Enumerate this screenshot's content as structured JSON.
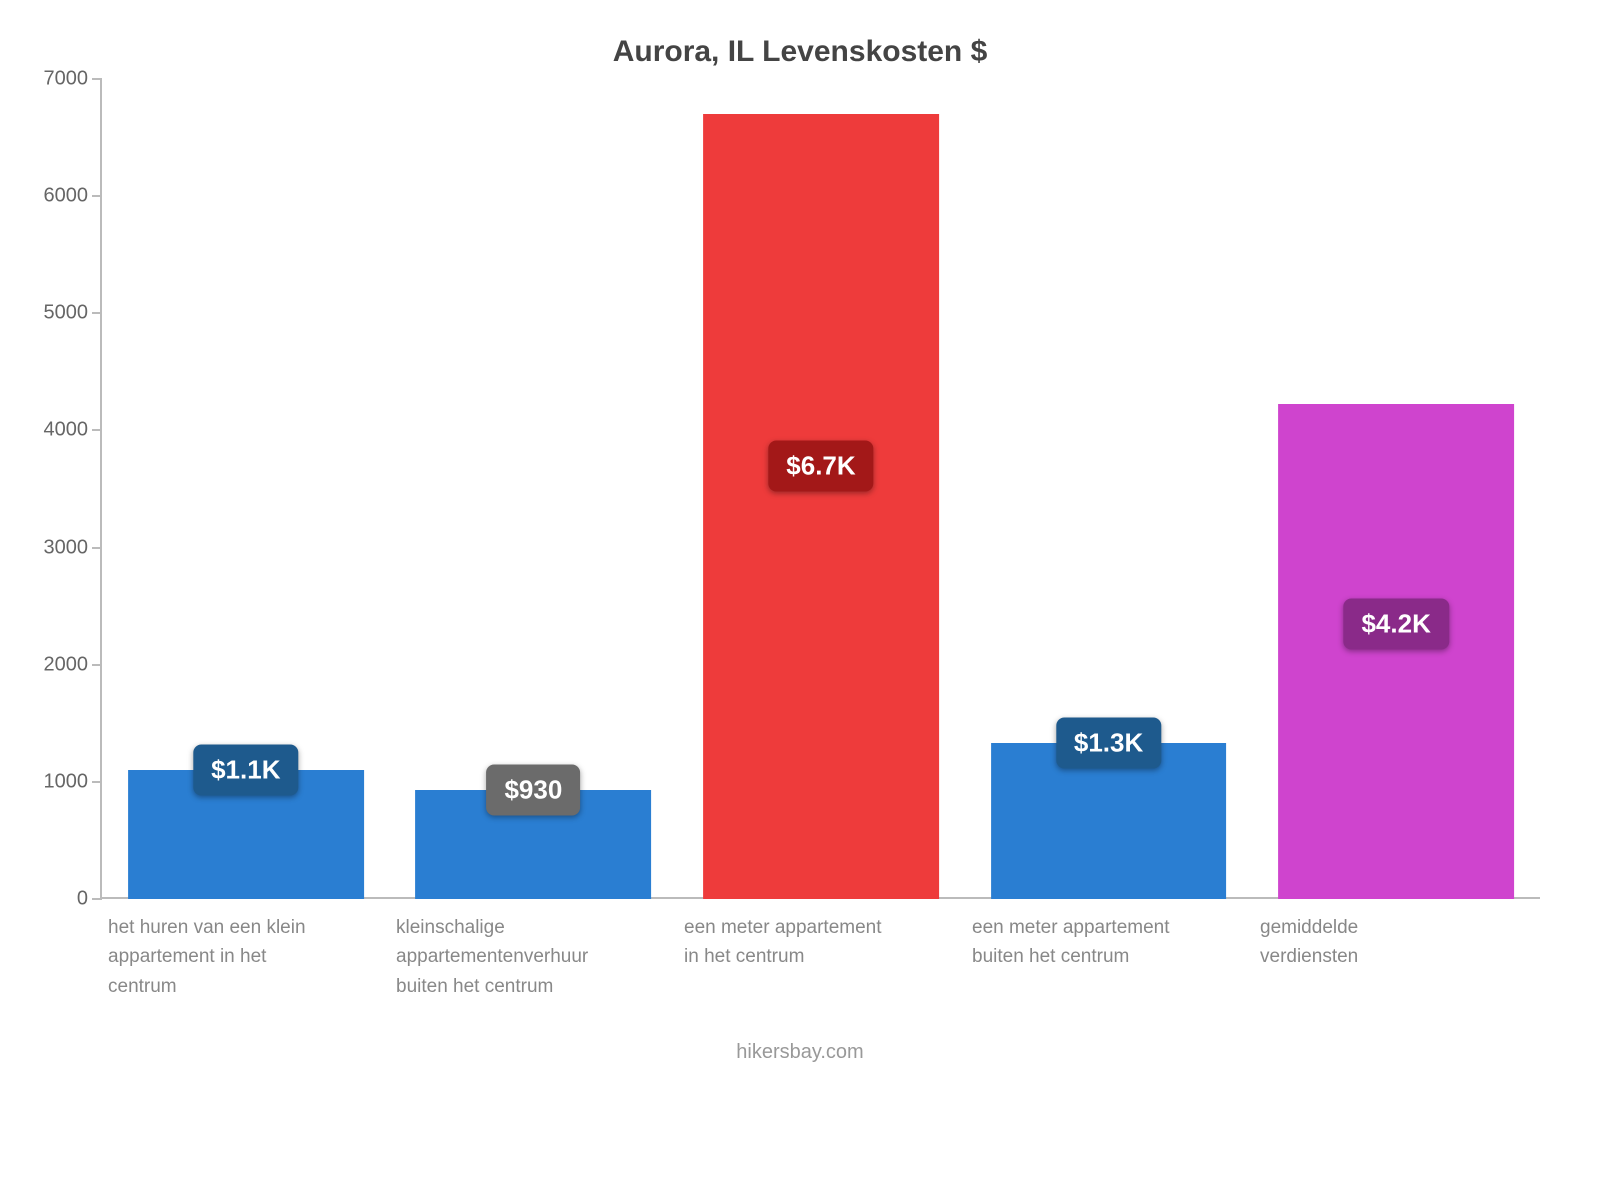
{
  "chart": {
    "type": "bar",
    "title": "Aurora, IL Levenskosten $",
    "title_fontsize": 30,
    "title_color": "#444444",
    "background_color": "#ffffff",
    "axis_color": "#bbbbbb",
    "ymin": 0,
    "ymax": 7000,
    "ytick_step": 1000,
    "yticks": [
      0,
      1000,
      2000,
      3000,
      4000,
      5000,
      6000,
      7000
    ],
    "ytick_labels": [
      "0",
      "1000",
      "2000",
      "3000",
      "4000",
      "5000",
      "6000",
      "7000"
    ],
    "ytick_fontsize": 20,
    "ytick_color": "#666666",
    "xlabel_fontsize": 19,
    "xlabel_color": "#888888",
    "bar_width_pct": 82,
    "badge_fontsize": 26,
    "badge_text_color": "#ffffff",
    "badge_radius": 8,
    "categories": [
      "het huren van een klein appartement in het centrum",
      "kleinschalige appartementenverhuur buiten het centrum",
      "een meter appartement in het centrum",
      "een meter appartement buiten het centrum",
      "gemiddelde verdiensten"
    ],
    "values": [
      1100,
      930,
      6700,
      1330,
      4230
    ],
    "value_labels": [
      "$1.1K",
      "$930",
      "$6.7K",
      "$1.3K",
      "$4.2K"
    ],
    "bar_colors": [
      "#2a7ed2",
      "#2a7ed2",
      "#ee3b3b",
      "#2a7ed2",
      "#cf44ce"
    ],
    "badge_colors": [
      "#1e5a8d",
      "#6b6b6b",
      "#a31818",
      "#1e5a8d",
      "#8a2a89"
    ],
    "badge_value_y": [
      1100,
      930,
      3700,
      1330,
      2350
    ],
    "footer": "hikersbay.com",
    "footer_fontsize": 20,
    "footer_color": "#999999"
  }
}
